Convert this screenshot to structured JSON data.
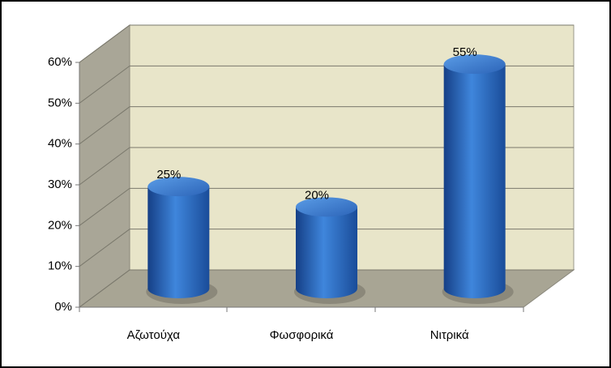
{
  "chart_data": {
    "type": "bar3d",
    "categories": [
      "Αζωτούχα",
      "Φωσφορικά",
      "Νιτρικά"
    ],
    "values": [
      25,
      20,
      55
    ],
    "value_labels": [
      "25%",
      "20%",
      "55%"
    ],
    "color": "#2f6fc8",
    "ylim": [
      0,
      60
    ],
    "yticks": [
      {
        "value": 0,
        "label": "0%"
      },
      {
        "value": 10,
        "label": "10%"
      },
      {
        "value": 20,
        "label": "20%"
      },
      {
        "value": 30,
        "label": "30%"
      },
      {
        "value": 40,
        "label": "40%"
      },
      {
        "value": 50,
        "label": "50%"
      },
      {
        "value": 60,
        "label": "60%"
      }
    ],
    "grid": true
  }
}
